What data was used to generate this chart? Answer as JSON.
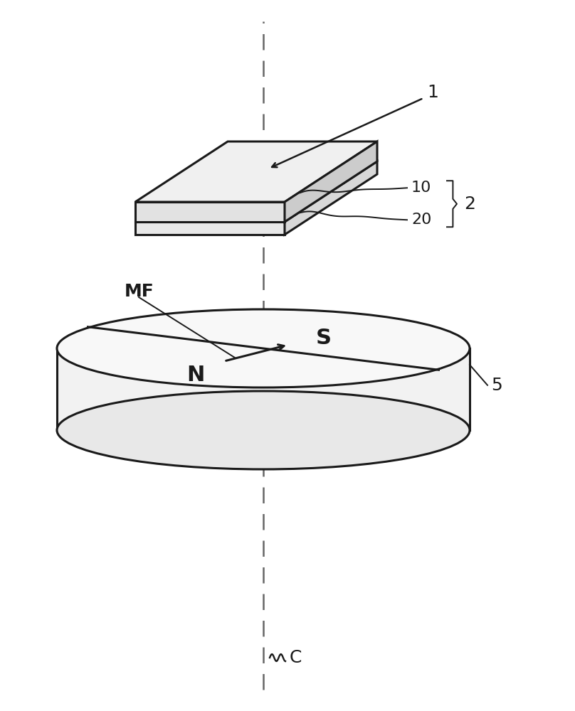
{
  "bg_color": "#ffffff",
  "line_color": "#1a1a1a",
  "dash_color": "#666666",
  "label_1": "1",
  "label_2": "2",
  "label_10": "10",
  "label_20": "20",
  "label_5": "5",
  "label_N": "N",
  "label_S": "S",
  "label_MF": "MF",
  "label_C": "C",
  "font_size_main": 18,
  "font_size_ns": 22
}
